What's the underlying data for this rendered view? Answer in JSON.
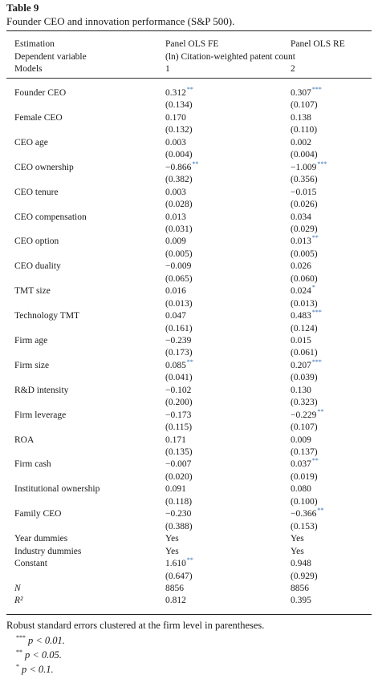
{
  "title": "Table 9",
  "subtitle": "Founder CEO and innovation performance (S&P 500).",
  "header": {
    "estimation": {
      "label": "Estimation",
      "col1": "Panel OLS FE",
      "col2": "Panel OLS RE"
    },
    "dependent": {
      "label": "Dependent variable",
      "value": "(ln) Citation-weighted patent count"
    },
    "models": {
      "label": "Models",
      "col1": "1",
      "col2": "2"
    }
  },
  "rows": [
    {
      "label": "Founder CEO",
      "c1": "0.312",
      "s1": "**",
      "se1": "(0.134)",
      "c2": "0.307",
      "s2": "***",
      "se2": "(0.107)"
    },
    {
      "label": "Female CEO",
      "c1": "0.170",
      "s1": "",
      "se1": "(0.132)",
      "c2": "0.138",
      "s2": "",
      "se2": "(0.110)"
    },
    {
      "label": "CEO age",
      "c1": "0.003",
      "s1": "",
      "se1": "(0.004)",
      "c2": "0.002",
      "s2": "",
      "se2": "(0.004)"
    },
    {
      "label": "CEO ownership",
      "c1": "−0.866",
      "s1": "**",
      "se1": "(0.382)",
      "c2": "−1.009",
      "s2": "***",
      "se2": "(0.356)"
    },
    {
      "label": "CEO tenure",
      "c1": "0.003",
      "s1": "",
      "se1": "(0.028)",
      "c2": "−0.015",
      "s2": "",
      "se2": "(0.026)"
    },
    {
      "label": "CEO compensation",
      "c1": "0.013",
      "s1": "",
      "se1": "(0.031)",
      "c2": "0.034",
      "s2": "",
      "se2": "(0.029)"
    },
    {
      "label": "CEO option",
      "c1": "0.009",
      "s1": "",
      "se1": "(0.005)",
      "c2": "0.013",
      "s2": "**",
      "se2": "(0.005)"
    },
    {
      "label": "CEO duality",
      "c1": "−0.009",
      "s1": "",
      "se1": "(0.065)",
      "c2": "0.026",
      "s2": "",
      "se2": "(0.060)"
    },
    {
      "label": "TMT size",
      "c1": "0.016",
      "s1": "",
      "se1": "(0.013)",
      "c2": "0.024",
      "s2": "*",
      "se2": "(0.013)"
    },
    {
      "label": "Technology TMT",
      "c1": "0.047",
      "s1": "",
      "se1": "(0.161)",
      "c2": "0.483",
      "s2": "***",
      "se2": "(0.124)"
    },
    {
      "label": "Firm age",
      "c1": "−0.239",
      "s1": "",
      "se1": "(0.173)",
      "c2": "0.015",
      "s2": "",
      "se2": "(0.061)"
    },
    {
      "label": "Firm size",
      "c1": "0.085",
      "s1": "**",
      "se1": "(0.041)",
      "c2": "0.207",
      "s2": "***",
      "se2": "(0.039)"
    },
    {
      "label": "R&D intensity",
      "c1": "−0.102",
      "s1": "",
      "se1": "(0.200)",
      "c2": "0.130",
      "s2": "",
      "se2": "(0.323)"
    },
    {
      "label": "Firm leverage",
      "c1": "−0.173",
      "s1": "",
      "se1": "(0.115)",
      "c2": "−0.229",
      "s2": "**",
      "se2": "(0.107)"
    },
    {
      "label": "ROA",
      "c1": "0.171",
      "s1": "",
      "se1": "(0.135)",
      "c2": "0.009",
      "s2": "",
      "se2": "(0.137)"
    },
    {
      "label": "Firm cash",
      "c1": "−0.007",
      "s1": "",
      "se1": "(0.020)",
      "c2": "0.037",
      "s2": "**",
      "se2": "(0.019)"
    },
    {
      "label": "Institutional ownership",
      "c1": "0.091",
      "s1": "",
      "se1": "(0.118)",
      "c2": "0.080",
      "s2": "",
      "se2": "(0.100)"
    },
    {
      "label": "Family CEO",
      "c1": "−0.230",
      "s1": "",
      "se1": "(0.388)",
      "c2": "−0.366",
      "s2": "**",
      "se2": "(0.153)"
    }
  ],
  "dummies": [
    {
      "label": "Year dummies",
      "c1": "Yes",
      "c2": "Yes"
    },
    {
      "label": "Industry dummies",
      "c1": "Yes",
      "c2": "Yes"
    }
  ],
  "constant": {
    "label": "Constant",
    "c1": "1.610",
    "s1": "**",
    "se1": "(0.647)",
    "c2": "0.948",
    "s2": "",
    "se2": "(0.929)"
  },
  "stats": [
    {
      "label": "N",
      "c1": "8856",
      "c2": "8856"
    },
    {
      "label": "R²",
      "c1": "0.812",
      "c2": "0.395"
    }
  ],
  "footnotes": {
    "note": "Robust standard errors clustered at the firm level in parentheses.",
    "items": [
      {
        "mark": "***",
        "text": "p  <  0.01."
      },
      {
        "mark": "**",
        "text": "p  <  0.05."
      },
      {
        "mark": "*",
        "text": "p  <  0.1."
      }
    ]
  }
}
